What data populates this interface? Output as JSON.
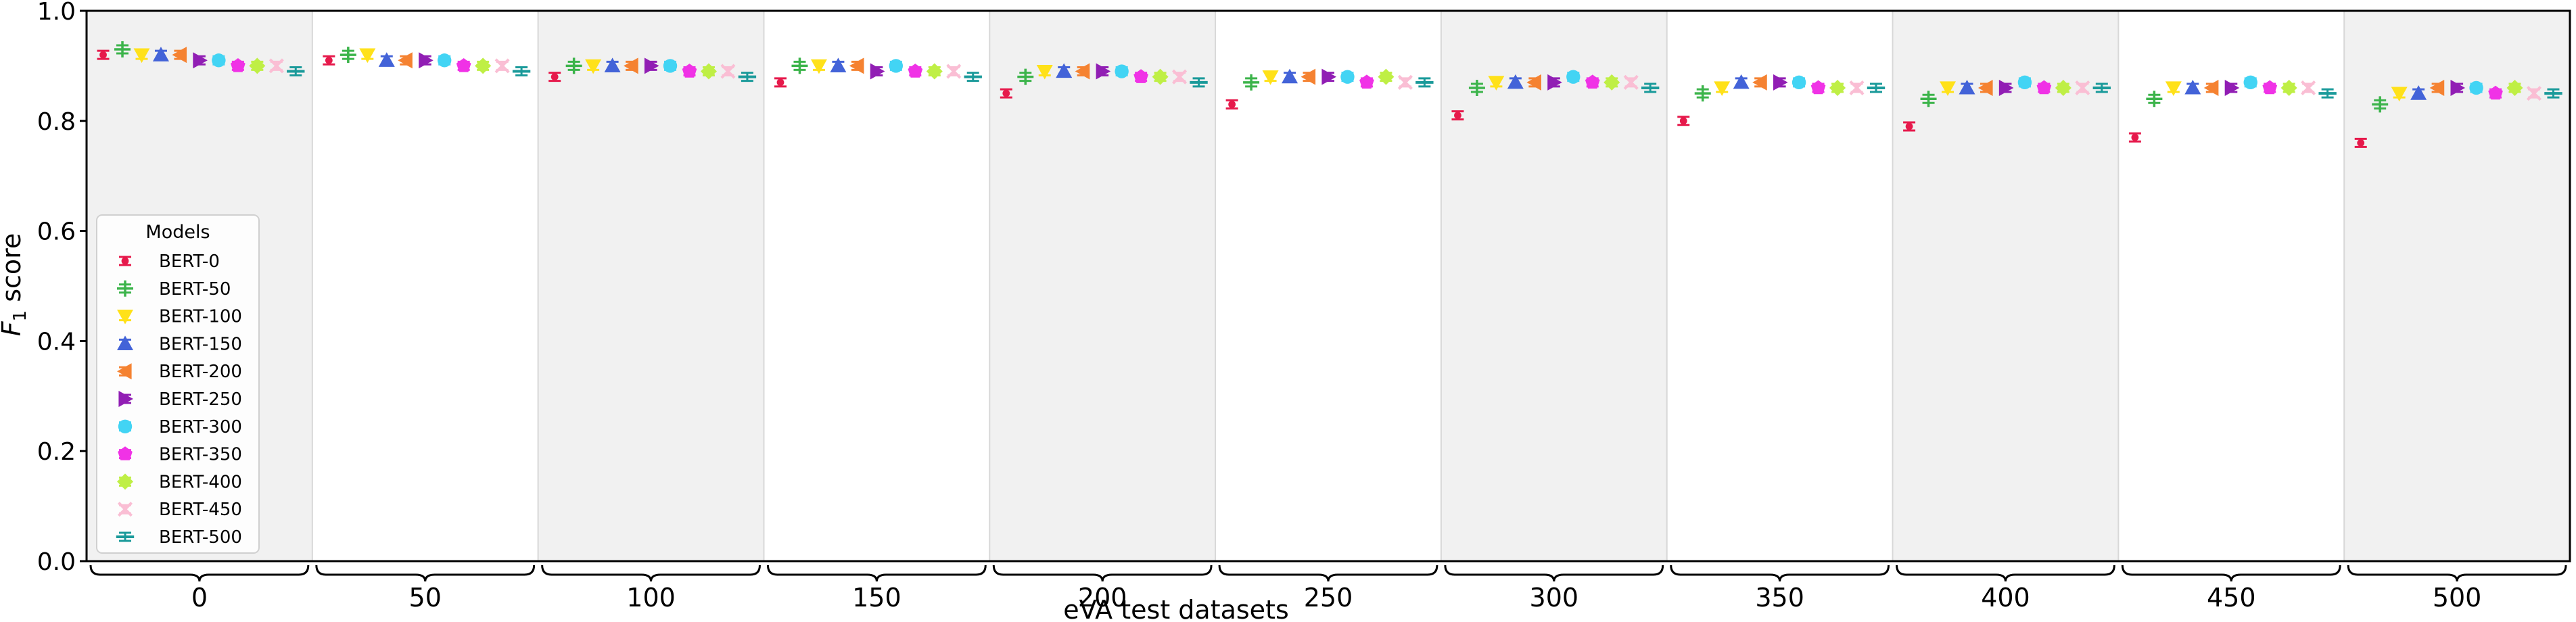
{
  "chart_data": {
    "type": "scatter",
    "xlabel": "eVA test datasets",
    "ylabel_main": "F",
    "ylabel_sub": "1",
    "ylabel_rest": " score",
    "ylim": [
      0.0,
      1.0
    ],
    "yticks": [
      "0.0",
      "0.2",
      "0.4",
      "0.6",
      "0.8",
      "1.0"
    ],
    "groups": [
      "0",
      "50",
      "100",
      "150",
      "200",
      "250",
      "300",
      "350",
      "400",
      "450",
      "500"
    ],
    "group_shading": [
      true,
      false,
      true,
      false,
      true,
      false,
      true,
      false,
      true,
      false,
      true
    ],
    "legend_title": "Models",
    "legend_position": "lower-left",
    "series": [
      {
        "name": "BERT-0",
        "color": "#e6194b",
        "marker": "dot",
        "values": [
          0.92,
          0.91,
          0.88,
          0.87,
          0.85,
          0.83,
          0.81,
          0.8,
          0.79,
          0.77,
          0.76
        ]
      },
      {
        "name": "BERT-50",
        "color": "#3cb44b",
        "marker": "plus",
        "values": [
          0.93,
          0.92,
          0.9,
          0.9,
          0.88,
          0.87,
          0.86,
          0.85,
          0.84,
          0.84,
          0.83
        ]
      },
      {
        "name": "BERT-100",
        "color": "#ffe119",
        "marker": "triangle-down",
        "values": [
          0.92,
          0.92,
          0.9,
          0.9,
          0.89,
          0.88,
          0.87,
          0.86,
          0.86,
          0.86,
          0.85
        ]
      },
      {
        "name": "BERT-150",
        "color": "#4363d8",
        "marker": "triangle-up",
        "values": [
          0.92,
          0.91,
          0.9,
          0.9,
          0.89,
          0.88,
          0.87,
          0.87,
          0.86,
          0.86,
          0.85
        ]
      },
      {
        "name": "BERT-200",
        "color": "#f58231",
        "marker": "triangle-left",
        "values": [
          0.92,
          0.91,
          0.9,
          0.9,
          0.89,
          0.88,
          0.87,
          0.87,
          0.86,
          0.86,
          0.86
        ]
      },
      {
        "name": "BERT-250",
        "color": "#911eb4",
        "marker": "triangle-right",
        "values": [
          0.91,
          0.91,
          0.9,
          0.89,
          0.89,
          0.88,
          0.87,
          0.87,
          0.86,
          0.86,
          0.86
        ]
      },
      {
        "name": "BERT-300",
        "color": "#42d4f4",
        "marker": "circle",
        "values": [
          0.91,
          0.91,
          0.9,
          0.9,
          0.89,
          0.88,
          0.88,
          0.87,
          0.87,
          0.87,
          0.86
        ]
      },
      {
        "name": "BERT-350",
        "color": "#f032e6",
        "marker": "pentagon",
        "values": [
          0.9,
          0.9,
          0.89,
          0.89,
          0.88,
          0.87,
          0.87,
          0.86,
          0.86,
          0.86,
          0.85
        ]
      },
      {
        "name": "BERT-400",
        "color": "#bfef45",
        "marker": "diamond",
        "values": [
          0.9,
          0.9,
          0.89,
          0.89,
          0.88,
          0.88,
          0.87,
          0.86,
          0.86,
          0.86,
          0.86
        ]
      },
      {
        "name": "BERT-450",
        "color": "#fabed4",
        "marker": "x",
        "values": [
          0.9,
          0.9,
          0.89,
          0.89,
          0.88,
          0.87,
          0.87,
          0.86,
          0.86,
          0.86,
          0.85
        ]
      },
      {
        "name": "BERT-500",
        "color": "#1a9a9a",
        "marker": "hline",
        "values": [
          0.89,
          0.89,
          0.88,
          0.88,
          0.87,
          0.87,
          0.86,
          0.86,
          0.86,
          0.85,
          0.85
        ]
      }
    ]
  }
}
